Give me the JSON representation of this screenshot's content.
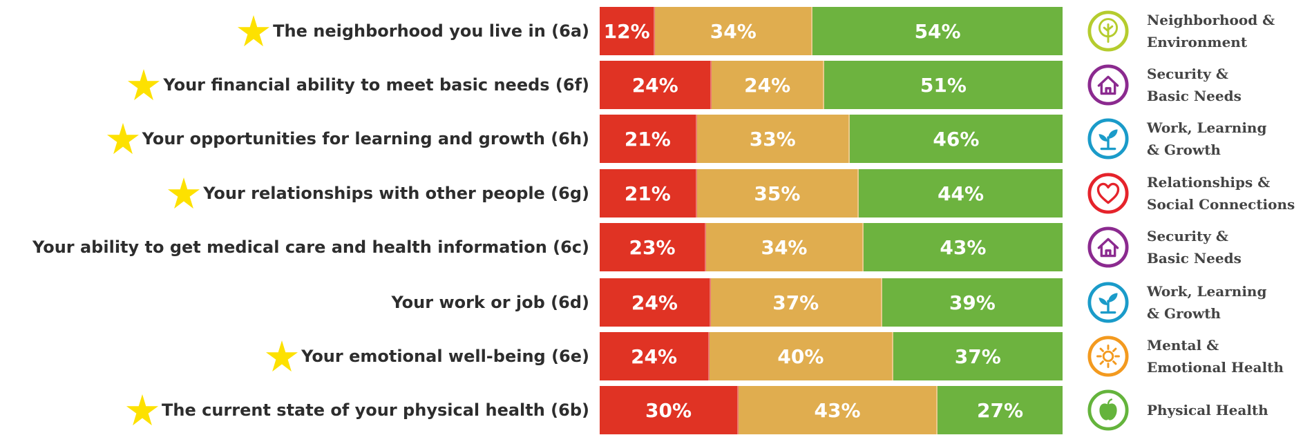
{
  "colors": {
    "negative": "#e03324",
    "neutral": "#e0ad4f",
    "positive": "#6db33f",
    "star": "#fde100",
    "label": "#2d2d2d",
    "category": "#444444"
  },
  "chart_data": {
    "type": "bar",
    "stacked": true,
    "orientation": "horizontal",
    "categories": [
      "The neighborhood you live in (6a)",
      "Your financial ability to meet basic needs (6f)",
      "Your opportunities for learning and growth (6h)",
      "Your relationships with other people (6g)",
      "Your ability to get medical care and health information (6c)",
      "Your work or job (6d)",
      "Your emotional well-being (6e)",
      "The current state of your physical health (6b)"
    ],
    "series": [
      {
        "color": "#e03324",
        "values": [
          12,
          24,
          21,
          21,
          23,
          24,
          24,
          30
        ]
      },
      {
        "color": "#e0ad4f",
        "values": [
          34,
          24,
          33,
          35,
          34,
          37,
          40,
          43
        ]
      },
      {
        "color": "#6db33f",
        "values": [
          54,
          51,
          46,
          44,
          43,
          39,
          37,
          27
        ]
      }
    ],
    "value_format": "{v}%",
    "xlim": [
      0,
      100
    ],
    "grid": false,
    "legend": "none"
  },
  "rows": [
    {
      "star": true,
      "category_lines": [
        "Neighborhood &",
        "Environment"
      ],
      "icon": "tree-icon",
      "icon_color": "#b5cc2e"
    },
    {
      "star": true,
      "category_lines": [
        "Security &",
        "Basic Needs"
      ],
      "icon": "house-icon",
      "icon_color": "#8b2a8f"
    },
    {
      "star": true,
      "category_lines": [
        "Work, Learning",
        "& Growth"
      ],
      "icon": "sprout-icon",
      "icon_color": "#1a9bc9"
    },
    {
      "star": true,
      "category_lines": [
        "Relationships &",
        "Social Connections"
      ],
      "icon": "heart-icon",
      "icon_color": "#e5232b"
    },
    {
      "star": false,
      "category_lines": [
        "Security &",
        "Basic Needs"
      ],
      "icon": "house-icon",
      "icon_color": "#8b2a8f"
    },
    {
      "star": false,
      "category_lines": [
        "Work, Learning",
        "& Growth"
      ],
      "icon": "sprout-icon",
      "icon_color": "#1a9bc9"
    },
    {
      "star": true,
      "category_lines": [
        "Mental &",
        "Emotional Health"
      ],
      "icon": "sun-icon",
      "icon_color": "#f39a1f"
    },
    {
      "star": true,
      "category_lines": [
        "Physical Health"
      ],
      "icon": "apple-icon",
      "icon_color": "#64b43c"
    }
  ]
}
